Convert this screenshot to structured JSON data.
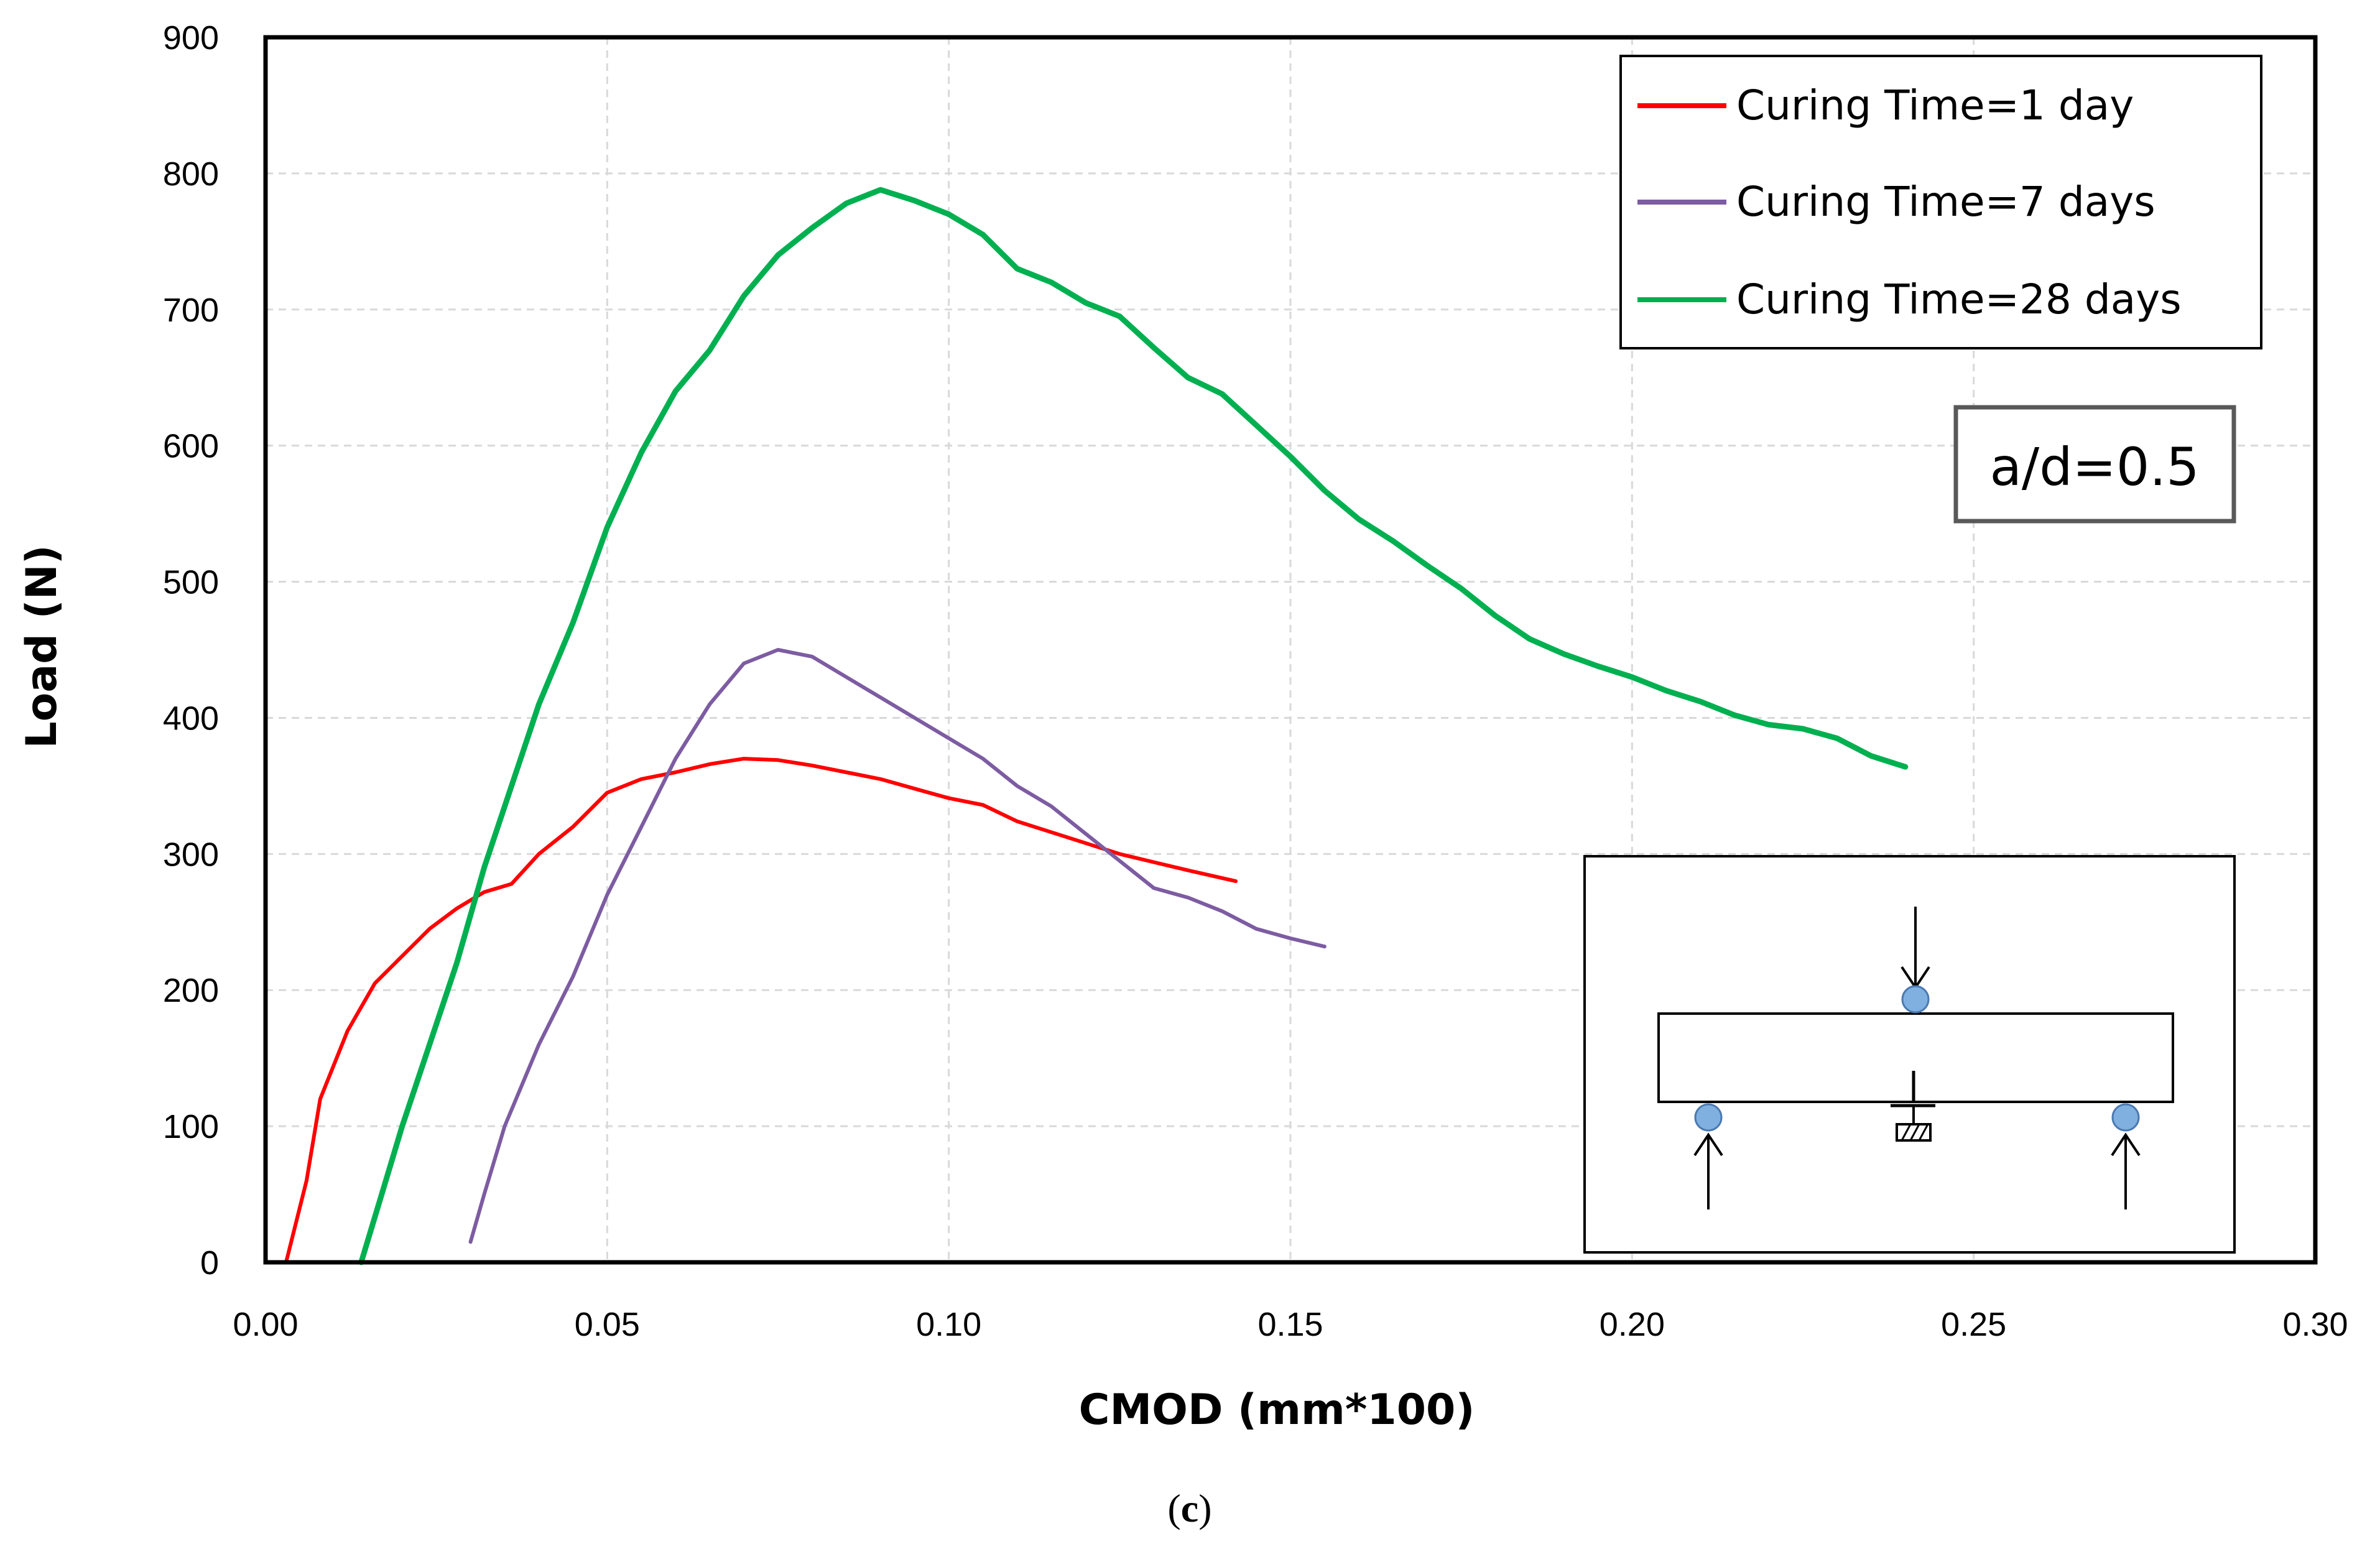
{
  "chart_data": {
    "type": "line",
    "title": "",
    "xlabel": "CMOD (mm*100)",
    "ylabel": "Load (N)",
    "xlim": [
      0,
      0.3
    ],
    "ylim": [
      0,
      900
    ],
    "x_ticks": [
      "0.00",
      "0.05",
      "0.10",
      "0.15",
      "0.20",
      "0.25",
      "0.30"
    ],
    "y_ticks": [
      "0",
      "100",
      "200",
      "300",
      "400",
      "500",
      "600",
      "700",
      "800",
      "900"
    ],
    "grid": true,
    "legend_position": "top-right",
    "annotation": "a/d=0.5",
    "caption_open": "(",
    "caption_letter": "c",
    "caption_close": ")",
    "inset": "three-point bending test setup: notched beam on two supports with central load",
    "series": [
      {
        "name": "Curing Time=1 day",
        "color": "#ff0000",
        "points": [
          [
            0.003,
            0
          ],
          [
            0.006,
            60
          ],
          [
            0.008,
            120
          ],
          [
            0.012,
            170
          ],
          [
            0.016,
            205
          ],
          [
            0.02,
            225
          ],
          [
            0.024,
            245
          ],
          [
            0.028,
            260
          ],
          [
            0.032,
            272
          ],
          [
            0.036,
            278
          ],
          [
            0.04,
            300
          ],
          [
            0.045,
            320
          ],
          [
            0.05,
            345
          ],
          [
            0.055,
            355
          ],
          [
            0.06,
            360
          ],
          [
            0.065,
            366
          ],
          [
            0.07,
            370
          ],
          [
            0.075,
            369
          ],
          [
            0.08,
            365
          ],
          [
            0.085,
            360
          ],
          [
            0.09,
            355
          ],
          [
            0.095,
            348
          ],
          [
            0.1,
            341
          ],
          [
            0.105,
            336
          ],
          [
            0.11,
            324
          ],
          [
            0.115,
            316
          ],
          [
            0.12,
            308
          ],
          [
            0.125,
            300
          ],
          [
            0.13,
            294
          ],
          [
            0.135,
            288
          ],
          [
            0.142,
            280
          ]
        ]
      },
      {
        "name": "Curing Time=7 days",
        "color": "#7d5ca2",
        "points": [
          [
            0.03,
            15
          ],
          [
            0.032,
            50
          ],
          [
            0.035,
            100
          ],
          [
            0.04,
            160
          ],
          [
            0.045,
            210
          ],
          [
            0.05,
            270
          ],
          [
            0.055,
            320
          ],
          [
            0.06,
            370
          ],
          [
            0.065,
            410
          ],
          [
            0.07,
            440
          ],
          [
            0.075,
            450
          ],
          [
            0.08,
            445
          ],
          [
            0.085,
            430
          ],
          [
            0.09,
            415
          ],
          [
            0.095,
            400
          ],
          [
            0.1,
            385
          ],
          [
            0.105,
            370
          ],
          [
            0.11,
            350
          ],
          [
            0.115,
            335
          ],
          [
            0.12,
            315
          ],
          [
            0.125,
            295
          ],
          [
            0.13,
            275
          ],
          [
            0.135,
            268
          ],
          [
            0.14,
            258
          ],
          [
            0.145,
            245
          ],
          [
            0.15,
            238
          ],
          [
            0.155,
            232
          ]
        ]
      },
      {
        "name": "Curing Time=28 days",
        "color": "#00b050",
        "points": [
          [
            0.014,
            0
          ],
          [
            0.017,
            50
          ],
          [
            0.02,
            100
          ],
          [
            0.024,
            160
          ],
          [
            0.028,
            220
          ],
          [
            0.032,
            290
          ],
          [
            0.036,
            350
          ],
          [
            0.04,
            410
          ],
          [
            0.045,
            470
          ],
          [
            0.05,
            540
          ],
          [
            0.055,
            595
          ],
          [
            0.06,
            640
          ],
          [
            0.065,
            670
          ],
          [
            0.07,
            710
          ],
          [
            0.075,
            740
          ],
          [
            0.08,
            760
          ],
          [
            0.085,
            778
          ],
          [
            0.09,
            788
          ],
          [
            0.095,
            780
          ],
          [
            0.1,
            770
          ],
          [
            0.105,
            755
          ],
          [
            0.11,
            730
          ],
          [
            0.115,
            720
          ],
          [
            0.12,
            705
          ],
          [
            0.125,
            695
          ],
          [
            0.13,
            672
          ],
          [
            0.135,
            650
          ],
          [
            0.14,
            638
          ],
          [
            0.145,
            615
          ],
          [
            0.15,
            592
          ],
          [
            0.155,
            567
          ],
          [
            0.16,
            546
          ],
          [
            0.165,
            530
          ],
          [
            0.17,
            512
          ],
          [
            0.175,
            495
          ],
          [
            0.18,
            475
          ],
          [
            0.185,
            458
          ],
          [
            0.19,
            447
          ],
          [
            0.195,
            438
          ],
          [
            0.2,
            430
          ],
          [
            0.205,
            420
          ],
          [
            0.21,
            412
          ],
          [
            0.215,
            402
          ],
          [
            0.22,
            395
          ],
          [
            0.225,
            392
          ],
          [
            0.23,
            385
          ],
          [
            0.235,
            372
          ],
          [
            0.24,
            364
          ]
        ]
      }
    ]
  }
}
